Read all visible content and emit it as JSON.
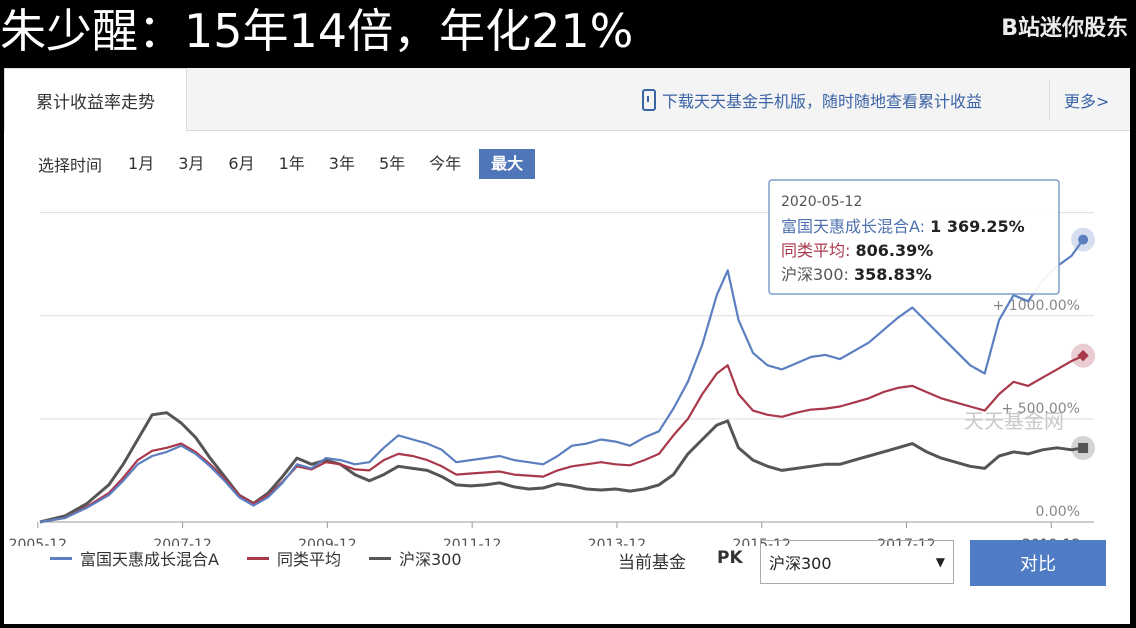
{
  "banner": {
    "title": "朱少醒：15年14倍，年化21%",
    "brand": "B站迷你股东"
  },
  "tabs": {
    "active_label": "累计收益率走势",
    "promo_text": "下载天天基金手机版，随时随地查看累计收益",
    "more_label": "更多>"
  },
  "time_select": {
    "label": "选择时间",
    "options": [
      "1月",
      "3月",
      "6月",
      "1年",
      "3年",
      "5年",
      "今年",
      "最大"
    ],
    "selected": "最大"
  },
  "chart_data": {
    "type": "line",
    "x_ticks": [
      "2005-12",
      "2007-12",
      "2009-12",
      "2011-12",
      "2013-12",
      "2015-12",
      "2017-12",
      "2019-12"
    ],
    "y_ticks": [
      "0.00%",
      "+ 500.00%",
      "+ 1000.00%"
    ],
    "ylim": [
      0,
      1600
    ],
    "watermark": "天天基金网",
    "colors": {
      "fund": "#5b7fc0",
      "avg": "#a8384a",
      "index": "#555555"
    },
    "series": [
      {
        "name": "富国天惠成长混合A",
        "values": [
          [
            2005.95,
            0
          ],
          [
            2006.3,
            20
          ],
          [
            2006.6,
            70
          ],
          [
            2006.9,
            130
          ],
          [
            2007.1,
            200
          ],
          [
            2007.3,
            280
          ],
          [
            2007.5,
            320
          ],
          [
            2007.7,
            340
          ],
          [
            2007.9,
            370
          ],
          [
            2008.1,
            330
          ],
          [
            2008.3,
            270
          ],
          [
            2008.5,
            200
          ],
          [
            2008.7,
            120
          ],
          [
            2008.9,
            80
          ],
          [
            2009.1,
            120
          ],
          [
            2009.3,
            190
          ],
          [
            2009.5,
            280
          ],
          [
            2009.7,
            260
          ],
          [
            2009.9,
            310
          ],
          [
            2010.1,
            300
          ],
          [
            2010.3,
            280
          ],
          [
            2010.5,
            290
          ],
          [
            2010.7,
            360
          ],
          [
            2010.9,
            420
          ],
          [
            2011.1,
            400
          ],
          [
            2011.3,
            380
          ],
          [
            2011.5,
            350
          ],
          [
            2011.7,
            290
          ],
          [
            2011.9,
            300
          ],
          [
            2012.1,
            310
          ],
          [
            2012.3,
            320
          ],
          [
            2012.5,
            300
          ],
          [
            2012.7,
            290
          ],
          [
            2012.9,
            280
          ],
          [
            2013.1,
            320
          ],
          [
            2013.3,
            370
          ],
          [
            2013.5,
            380
          ],
          [
            2013.7,
            400
          ],
          [
            2013.9,
            390
          ],
          [
            2014.1,
            370
          ],
          [
            2014.3,
            410
          ],
          [
            2014.5,
            440
          ],
          [
            2014.7,
            550
          ],
          [
            2014.9,
            680
          ],
          [
            2015.1,
            860
          ],
          [
            2015.3,
            1100
          ],
          [
            2015.45,
            1220
          ],
          [
            2015.6,
            980
          ],
          [
            2015.8,
            820
          ],
          [
            2016.0,
            760
          ],
          [
            2016.2,
            740
          ],
          [
            2016.4,
            770
          ],
          [
            2016.6,
            800
          ],
          [
            2016.8,
            810
          ],
          [
            2017.0,
            790
          ],
          [
            2017.2,
            830
          ],
          [
            2017.4,
            870
          ],
          [
            2017.6,
            930
          ],
          [
            2017.8,
            990
          ],
          [
            2018.0,
            1040
          ],
          [
            2018.2,
            970
          ],
          [
            2018.4,
            900
          ],
          [
            2018.6,
            830
          ],
          [
            2018.8,
            760
          ],
          [
            2019.0,
            720
          ],
          [
            2019.2,
            980
          ],
          [
            2019.4,
            1100
          ],
          [
            2019.6,
            1070
          ],
          [
            2019.8,
            1170
          ],
          [
            2020.0,
            1240
          ],
          [
            2020.2,
            1290
          ],
          [
            2020.36,
            1369.25
          ]
        ]
      },
      {
        "name": "同类平均",
        "values": [
          [
            2005.95,
            0
          ],
          [
            2006.3,
            20
          ],
          [
            2006.6,
            75
          ],
          [
            2006.9,
            140
          ],
          [
            2007.1,
            215
          ],
          [
            2007.3,
            300
          ],
          [
            2007.5,
            345
          ],
          [
            2007.7,
            360
          ],
          [
            2007.9,
            380
          ],
          [
            2008.1,
            340
          ],
          [
            2008.3,
            280
          ],
          [
            2008.5,
            210
          ],
          [
            2008.7,
            130
          ],
          [
            2008.9,
            90
          ],
          [
            2009.1,
            130
          ],
          [
            2009.3,
            195
          ],
          [
            2009.5,
            270
          ],
          [
            2009.7,
            255
          ],
          [
            2009.9,
            290
          ],
          [
            2010.1,
            280
          ],
          [
            2010.3,
            255
          ],
          [
            2010.5,
            250
          ],
          [
            2010.7,
            300
          ],
          [
            2010.9,
            330
          ],
          [
            2011.1,
            320
          ],
          [
            2011.3,
            300
          ],
          [
            2011.5,
            270
          ],
          [
            2011.7,
            230
          ],
          [
            2011.9,
            235
          ],
          [
            2012.1,
            240
          ],
          [
            2012.3,
            245
          ],
          [
            2012.5,
            230
          ],
          [
            2012.7,
            225
          ],
          [
            2012.9,
            220
          ],
          [
            2013.1,
            250
          ],
          [
            2013.3,
            270
          ],
          [
            2013.5,
            280
          ],
          [
            2013.7,
            290
          ],
          [
            2013.9,
            280
          ],
          [
            2014.1,
            275
          ],
          [
            2014.3,
            300
          ],
          [
            2014.5,
            330
          ],
          [
            2014.7,
            420
          ],
          [
            2014.9,
            500
          ],
          [
            2015.1,
            620
          ],
          [
            2015.3,
            720
          ],
          [
            2015.45,
            760
          ],
          [
            2015.6,
            620
          ],
          [
            2015.8,
            540
          ],
          [
            2016.0,
            520
          ],
          [
            2016.2,
            510
          ],
          [
            2016.4,
            530
          ],
          [
            2016.6,
            545
          ],
          [
            2016.8,
            550
          ],
          [
            2017.0,
            560
          ],
          [
            2017.2,
            580
          ],
          [
            2017.4,
            600
          ],
          [
            2017.6,
            630
          ],
          [
            2017.8,
            650
          ],
          [
            2018.0,
            660
          ],
          [
            2018.2,
            630
          ],
          [
            2018.4,
            600
          ],
          [
            2018.6,
            580
          ],
          [
            2018.8,
            560
          ],
          [
            2019.0,
            540
          ],
          [
            2019.2,
            620
          ],
          [
            2019.4,
            680
          ],
          [
            2019.6,
            660
          ],
          [
            2019.8,
            700
          ],
          [
            2020.0,
            740
          ],
          [
            2020.2,
            780
          ],
          [
            2020.36,
            806.39
          ]
        ]
      },
      {
        "name": "沪深300",
        "values": [
          [
            2005.95,
            0
          ],
          [
            2006.3,
            30
          ],
          [
            2006.6,
            90
          ],
          [
            2006.9,
            180
          ],
          [
            2007.1,
            280
          ],
          [
            2007.3,
            400
          ],
          [
            2007.5,
            520
          ],
          [
            2007.7,
            530
          ],
          [
            2007.9,
            480
          ],
          [
            2008.1,
            410
          ],
          [
            2008.3,
            310
          ],
          [
            2008.5,
            220
          ],
          [
            2008.7,
            130
          ],
          [
            2008.9,
            90
          ],
          [
            2009.1,
            140
          ],
          [
            2009.3,
            220
          ],
          [
            2009.5,
            310
          ],
          [
            2009.7,
            280
          ],
          [
            2009.9,
            300
          ],
          [
            2010.1,
            280
          ],
          [
            2010.3,
            230
          ],
          [
            2010.5,
            200
          ],
          [
            2010.7,
            230
          ],
          [
            2010.9,
            270
          ],
          [
            2011.1,
            260
          ],
          [
            2011.3,
            250
          ],
          [
            2011.5,
            220
          ],
          [
            2011.7,
            180
          ],
          [
            2011.9,
            175
          ],
          [
            2012.1,
            180
          ],
          [
            2012.3,
            190
          ],
          [
            2012.5,
            170
          ],
          [
            2012.7,
            160
          ],
          [
            2012.9,
            165
          ],
          [
            2013.1,
            185
          ],
          [
            2013.3,
            175
          ],
          [
            2013.5,
            160
          ],
          [
            2013.7,
            155
          ],
          [
            2013.9,
            160
          ],
          [
            2014.1,
            150
          ],
          [
            2014.3,
            160
          ],
          [
            2014.5,
            180
          ],
          [
            2014.7,
            230
          ],
          [
            2014.9,
            330
          ],
          [
            2015.1,
            400
          ],
          [
            2015.3,
            470
          ],
          [
            2015.45,
            490
          ],
          [
            2015.6,
            360
          ],
          [
            2015.8,
            300
          ],
          [
            2016.0,
            270
          ],
          [
            2016.2,
            250
          ],
          [
            2016.4,
            260
          ],
          [
            2016.6,
            270
          ],
          [
            2016.8,
            280
          ],
          [
            2017.0,
            280
          ],
          [
            2017.2,
            300
          ],
          [
            2017.4,
            320
          ],
          [
            2017.6,
            340
          ],
          [
            2017.8,
            360
          ],
          [
            2018.0,
            380
          ],
          [
            2018.2,
            340
          ],
          [
            2018.4,
            310
          ],
          [
            2018.6,
            290
          ],
          [
            2018.8,
            270
          ],
          [
            2019.0,
            260
          ],
          [
            2019.2,
            320
          ],
          [
            2019.4,
            340
          ],
          [
            2019.6,
            330
          ],
          [
            2019.8,
            350
          ],
          [
            2020.0,
            360
          ],
          [
            2020.2,
            350
          ],
          [
            2020.36,
            358.83
          ]
        ]
      }
    ],
    "tooltip": {
      "date": "2020-05-12",
      "rows": [
        {
          "name": "富国天惠成长混合A",
          "value": "1 369.25%",
          "color": "#4f72b0"
        },
        {
          "name": "同类平均",
          "value": "806.39%",
          "color": "#a8384a"
        },
        {
          "name": "沪深300",
          "value": "358.83%",
          "color": "#555555"
        }
      ]
    }
  },
  "legend": {
    "items": [
      {
        "label": "富国天惠成长混合A",
        "color": "#5b7fc0"
      },
      {
        "label": "同类平均",
        "color": "#a8384a"
      },
      {
        "label": "沪深300",
        "color": "#555555"
      }
    ]
  },
  "compare": {
    "current_label": "当前基金",
    "pk_label": "PK",
    "select_value": "沪深300",
    "button_label": "对比"
  }
}
